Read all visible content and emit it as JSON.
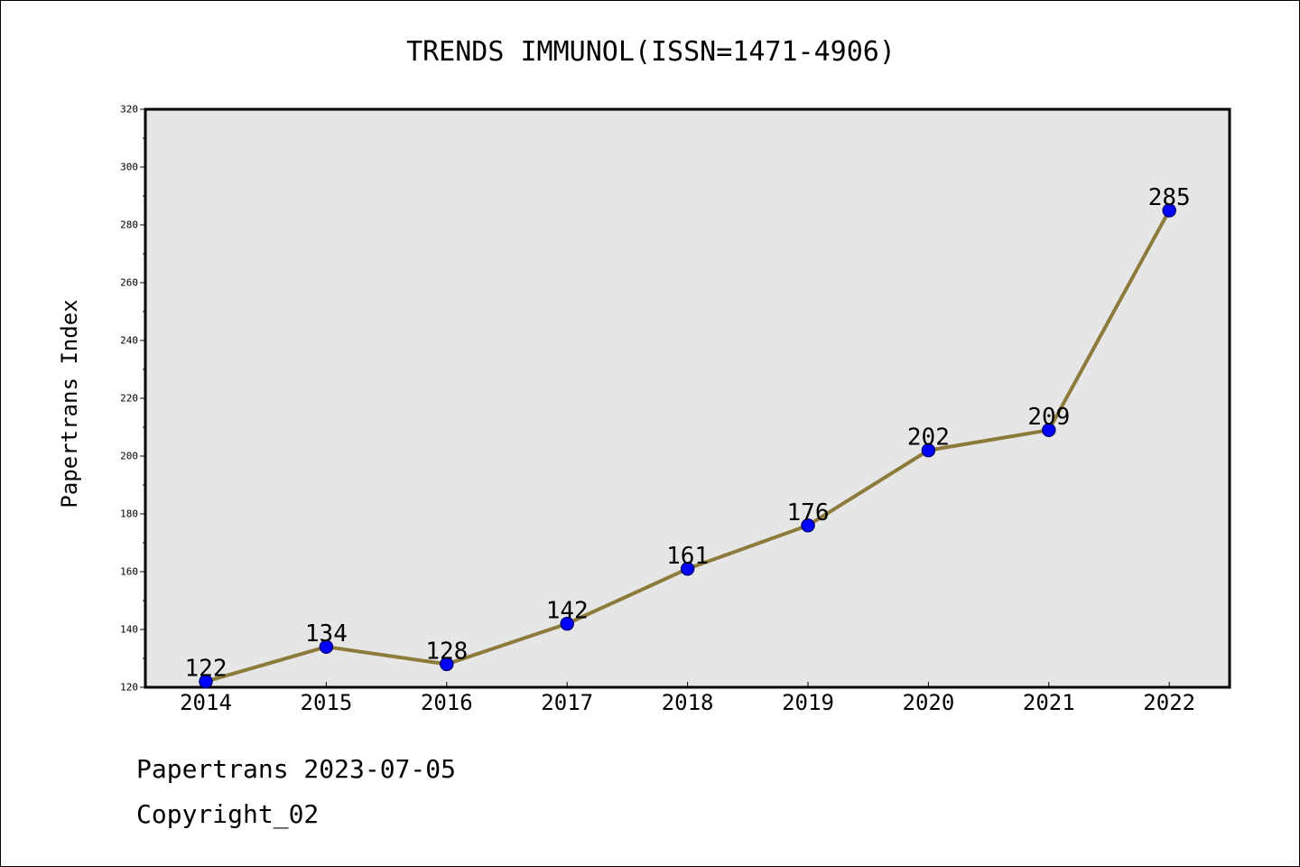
{
  "chart_data": {
    "type": "line",
    "title": "TRENDS IMMUNOL(ISSN=1471-4906)",
    "xlabel": "",
    "ylabel": "Papertrans Index",
    "categories": [
      "2014",
      "2015",
      "2016",
      "2017",
      "2018",
      "2019",
      "2020",
      "2021",
      "2022"
    ],
    "series": [
      {
        "values": [
          122,
          134,
          128,
          142,
          161,
          176,
          202,
          209,
          285
        ]
      }
    ],
    "data_labels": [
      "122",
      "134",
      "128",
      "142",
      "161",
      "176",
      "202",
      "209",
      "285"
    ],
    "ylim": [
      120,
      320
    ],
    "y_ticks": [
      120,
      140,
      160,
      180,
      200,
      220,
      240,
      260,
      280,
      300,
      320
    ],
    "grid": false,
    "legend": "none",
    "colors": {
      "line": "#8c7b3a",
      "marker": "#0000ff",
      "marker_edge": "#000080",
      "plot_background": "#e6e6e6"
    }
  },
  "footer": {
    "line1": "Papertrans 2023-07-05",
    "line2": "Copyright_02"
  }
}
